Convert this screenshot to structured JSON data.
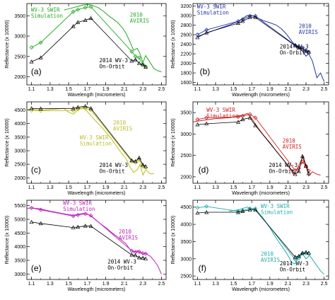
{
  "chart_data": [
    {
      "type": "line",
      "panel": "(a)",
      "xlabel": "Wavelength (micrometers)",
      "ylabel": "Reflectance (x 10000)",
      "xlim": [
        1.05,
        2.55
      ],
      "ylim": [
        1800,
        3800
      ],
      "xticks": [
        1.1,
        1.3,
        1.5,
        1.7,
        1.9,
        2.1,
        2.3,
        2.5
      ],
      "yticks": [
        2000,
        2500,
        3000,
        3500
      ],
      "color": "#22aa22",
      "series": [
        {
          "kind": "aviris",
          "x": [
            1.45,
            1.55,
            1.6,
            1.65,
            1.7,
            1.75,
            1.82,
            1.88,
            1.93,
            1.98,
            2.03,
            2.08,
            2.12,
            2.16,
            2.2,
            2.24,
            2.27,
            2.3,
            2.33,
            2.37,
            2.42,
            2.46,
            2.5
          ],
          "y": [
            3640,
            3700,
            3730,
            3760,
            3780,
            3760,
            3700,
            3600,
            3500,
            3420,
            3330,
            3200,
            3060,
            2860,
            2650,
            2700,
            2560,
            2350,
            2520,
            2380,
            2200,
            2150,
            2120
          ]
        },
        {
          "kind": "simulation",
          "x": [
            1.1,
            1.2,
            1.55,
            1.6,
            1.68,
            1.74,
            2.18,
            2.22,
            2.26,
            2.3,
            2.33
          ],
          "y": [
            2720,
            2840,
            3600,
            3650,
            3700,
            3720,
            2620,
            2500,
            2470,
            2300,
            2250
          ]
        },
        {
          "kind": "onorbit",
          "x": [
            1.1,
            1.2,
            1.55,
            1.6,
            1.68,
            1.74,
            2.18,
            2.22,
            2.26,
            2.3,
            2.33
          ],
          "y": [
            2370,
            2470,
            3240,
            3340,
            3390,
            3440,
            2390,
            2420,
            2330,
            2300,
            2240
          ]
        }
      ],
      "labels": {
        "simulation": [
          "WV-3 SWIR",
          "Simulation"
        ],
        "aviris": [
          "2010",
          "AVIRIS"
        ],
        "onorbit": [
          "2014 WV-3",
          "On-Orbit"
        ]
      }
    },
    {
      "type": "line",
      "panel": "(b)",
      "xlabel": "Wavelength (micrometers)",
      "ylabel": "Reflectance (x 10000)",
      "xlim": [
        1.05,
        2.55
      ],
      "ylim": [
        1550,
        3250
      ],
      "xticks": [
        1.1,
        1.3,
        1.5,
        1.7,
        1.9,
        2.1,
        2.3,
        2.5
      ],
      "yticks": [
        1600,
        1800,
        2000,
        2200,
        2400,
        2600,
        2800,
        3000,
        3200
      ],
      "color": "#2233aa",
      "series": [
        {
          "kind": "aviris",
          "x": [
            1.1,
            1.2,
            1.3,
            1.45,
            1.55,
            1.6,
            1.65,
            1.7,
            1.75,
            1.82,
            1.9,
            1.97,
            2.03,
            2.08,
            2.12,
            2.16,
            2.2,
            2.24,
            2.27,
            2.3,
            2.33,
            2.37,
            2.42,
            2.46,
            2.5
          ],
          "y": [
            2560,
            2630,
            2700,
            2800,
            2880,
            2940,
            3000,
            3000,
            2960,
            2900,
            2850,
            2800,
            2720,
            2620,
            2520,
            2420,
            2340,
            2300,
            2230,
            2150,
            2200,
            2050,
            1700,
            1800,
            1620
          ]
        },
        {
          "kind": "simulation",
          "x": [
            1.1,
            1.2,
            1.55,
            1.6,
            1.68,
            1.74,
            2.18,
            2.22,
            2.26,
            2.3,
            2.33
          ],
          "y": [
            2600,
            2700,
            2880,
            2920,
            2990,
            2990,
            2380,
            2340,
            2330,
            2270,
            2240
          ]
        },
        {
          "kind": "onorbit",
          "x": [
            1.1,
            1.2,
            1.55,
            1.6,
            1.68,
            1.74,
            2.18,
            2.22,
            2.26,
            2.3,
            2.33
          ],
          "y": [
            2540,
            2640,
            2840,
            2880,
            2960,
            2960,
            2370,
            2320,
            2300,
            2250,
            2230
          ]
        }
      ],
      "labels": {
        "simulation": [
          "WV-3 SWIR",
          "Simulation"
        ],
        "aviris": [
          "2010",
          "AVIRIS"
        ],
        "onorbit": [
          "2014 WV-3",
          "On-Orbit"
        ]
      }
    },
    {
      "type": "line",
      "panel": "(c)",
      "xlabel": "Wavelength (micrometers)",
      "ylabel": "Reflectance (x 10000)",
      "xlim": [
        1.05,
        2.55
      ],
      "ylim": [
        1800,
        4800
      ],
      "xticks": [
        1.1,
        1.3,
        1.5,
        1.7,
        1.9,
        2.1,
        2.3,
        2.5
      ],
      "yticks": [
        2000,
        2500,
        3000,
        3500,
        4000,
        4500
      ],
      "color": "#bbbb22",
      "series": [
        {
          "kind": "aviris",
          "x": [
            1.05,
            1.1,
            1.2,
            1.3,
            1.45,
            1.5,
            1.55,
            1.6,
            1.65,
            1.7,
            1.75,
            1.82,
            1.9,
            1.97,
            2.05,
            2.12,
            2.16,
            2.2,
            2.24,
            2.27,
            2.3,
            2.33,
            2.38,
            2.42
          ],
          "y": [
            4520,
            4540,
            4480,
            4520,
            4560,
            4420,
            4350,
            4500,
            4600,
            4450,
            4250,
            4000,
            3700,
            3400,
            3000,
            2700,
            2400,
            2200,
            2300,
            2500,
            2100,
            2300,
            2150,
            2150
          ]
        },
        {
          "kind": "simulation",
          "x": [
            1.1,
            1.2,
            1.55,
            1.6,
            1.68,
            1.74,
            2.18,
            2.22,
            2.26,
            2.3,
            2.33
          ],
          "y": [
            4480,
            4470,
            4480,
            4530,
            4560,
            4500,
            2600,
            2560,
            2660,
            2420,
            2380
          ]
        },
        {
          "kind": "onorbit",
          "x": [
            1.1,
            1.2,
            1.55,
            1.6,
            1.68,
            1.74,
            2.18,
            2.22,
            2.26,
            2.3,
            2.33
          ],
          "y": [
            4560,
            4550,
            4560,
            4600,
            4640,
            4560,
            2640,
            2610,
            2740,
            2480,
            2420
          ]
        }
      ],
      "labels": {
        "simulation": [
          "WV-3 SWIR",
          "Simulation"
        ],
        "aviris": [
          "2010",
          "AVIRIS"
        ],
        "onorbit": [
          "2014 WV-3",
          "On-Orbit"
        ]
      }
    },
    {
      "type": "line",
      "panel": "(d)",
      "xlabel": "Wavelength (micrometers)",
      "ylabel": "Reflectance (x 10000)",
      "xlim": [
        1.05,
        2.55
      ],
      "ylim": [
        1850,
        3750
      ],
      "xticks": [
        1.1,
        1.3,
        1.5,
        1.7,
        1.9,
        2.1,
        2.3,
        2.5
      ],
      "yticks": [
        2000,
        2500,
        3000,
        3500
      ],
      "color": "#cc2222",
      "series": [
        {
          "kind": "aviris",
          "x": [
            1.05,
            1.1,
            1.2,
            1.3,
            1.45,
            1.55,
            1.6,
            1.65,
            1.7,
            1.75,
            1.82,
            1.9,
            1.97,
            2.05,
            2.12,
            2.16,
            2.2,
            2.24,
            2.27,
            2.3,
            2.33,
            2.37,
            2.42,
            2.46
          ],
          "y": [
            3280,
            3300,
            3330,
            3360,
            3380,
            3420,
            3440,
            3480,
            3360,
            3200,
            3000,
            2800,
            2600,
            2400,
            2200,
            2060,
            2160,
            2360,
            2480,
            2260,
            2020,
            2120,
            2060,
            2040
          ]
        },
        {
          "kind": "simulation",
          "x": [
            1.1,
            1.2,
            1.55,
            1.6,
            1.68,
            1.74,
            2.18,
            2.22,
            2.26,
            2.3,
            2.33
          ],
          "y": [
            3340,
            3380,
            3400,
            3420,
            3460,
            3380,
            2150,
            2200,
            2350,
            2250,
            2140
          ]
        },
        {
          "kind": "onorbit",
          "x": [
            1.1,
            1.2,
            1.55,
            1.6,
            1.68,
            1.74,
            2.18,
            2.22,
            2.26,
            2.3,
            2.33
          ],
          "y": [
            3220,
            3240,
            3280,
            3340,
            3380,
            3200,
            2060,
            2130,
            2480,
            2250,
            2080
          ]
        }
      ],
      "labels": {
        "simulation": [
          "WV-3 SWIR",
          "Simulation"
        ],
        "aviris": [
          "2010",
          "AVIRIS"
        ],
        "onorbit": [
          "2014 WV-3",
          "On-Orbit"
        ]
      }
    },
    {
      "type": "line",
      "panel": "(e)",
      "xlabel": "Wavelength (micrometers)",
      "ylabel": "Reflectance (x 10000)",
      "xlim": [
        1.05,
        2.55
      ],
      "ylim": [
        2800,
        5700
      ],
      "xticks": [
        1.1,
        1.3,
        1.5,
        1.7,
        1.9,
        2.1,
        2.3,
        2.5
      ],
      "yticks": [
        3000,
        3500,
        4000,
        4500,
        5000,
        5500
      ],
      "color": "#bb22bb",
      "series": [
        {
          "kind": "aviris",
          "x": [
            1.05,
            1.1,
            1.2,
            1.3,
            1.45,
            1.55,
            1.6,
            1.65,
            1.7,
            1.75,
            1.82,
            1.9,
            1.97,
            2.05,
            2.12,
            2.16,
            2.2,
            2.24,
            2.27,
            2.3,
            2.33,
            2.38,
            2.42,
            2.46,
            2.5
          ],
          "y": [
            5400,
            5420,
            5380,
            5300,
            5200,
            5150,
            5180,
            5220,
            5200,
            5100,
            4900,
            4700,
            4500,
            4300,
            4100,
            3900,
            3800,
            3850,
            3780,
            3720,
            3750,
            3650,
            3500,
            3300,
            3000
          ]
        },
        {
          "kind": "simulation",
          "x": [
            1.1,
            1.2,
            1.55,
            1.6,
            1.68,
            1.74,
            2.18,
            2.22,
            2.26,
            2.3,
            2.33
          ],
          "y": [
            5420,
            5350,
            5120,
            5160,
            5200,
            5140,
            3850,
            3800,
            3820,
            3760,
            3740
          ]
        },
        {
          "kind": "onorbit",
          "x": [
            1.1,
            1.2,
            1.55,
            1.6,
            1.68,
            1.74,
            2.18,
            2.22,
            2.26,
            2.3,
            2.33
          ],
          "y": [
            4900,
            4850,
            4700,
            4720,
            4760,
            4750,
            3700,
            3680,
            3600,
            3590,
            3560
          ]
        }
      ],
      "labels": {
        "simulation": [
          "WV-3 SWIR",
          "Simulation"
        ],
        "aviris": [
          "2010",
          "AVIRIS"
        ],
        "onorbit": [
          "2014 WV-3",
          "On-Orbit"
        ]
      }
    },
    {
      "type": "line",
      "panel": "(f)",
      "xlabel": "Wavelength (micrometers)",
      "ylabel": "Reflectance (x 10000)",
      "xlim": [
        1.05,
        2.55
      ],
      "ylim": [
        2400,
        4700
      ],
      "xticks": [
        1.1,
        1.3,
        1.5,
        1.7,
        1.9,
        2.1,
        2.3,
        2.5
      ],
      "yticks": [
        2500,
        3000,
        3500,
        4000,
        4500
      ],
      "color": "#22aaaa",
      "series": [
        {
          "kind": "aviris",
          "x": [
            1.45,
            1.55,
            1.6,
            1.65,
            1.7,
            1.75,
            1.82,
            1.9,
            1.97,
            2.05,
            2.1,
            2.14,
            2.18,
            2.22,
            2.26,
            2.3,
            2.34,
            2.38,
            2.42,
            2.46,
            2.5
          ],
          "y": [
            4380,
            4420,
            4460,
            4500,
            4450,
            4400,
            4200,
            3900,
            3600,
            3300,
            3100,
            2900,
            2850,
            3050,
            3150,
            3000,
            3100,
            2950,
            2800,
            2650,
            2550
          ]
        },
        {
          "kind": "simulation",
          "x": [
            1.1,
            1.2,
            1.55,
            1.6,
            1.68,
            1.74,
            2.18,
            2.22,
            2.26,
            2.3,
            2.33
          ],
          "y": [
            4480,
            4520,
            4380,
            4400,
            4460,
            4460,
            2980,
            3020,
            3150,
            3160,
            3150
          ]
        },
        {
          "kind": "onorbit",
          "x": [
            1.1,
            1.2,
            1.55,
            1.6,
            1.68,
            1.74,
            2.18,
            2.22,
            2.26,
            2.3,
            2.33
          ],
          "y": [
            4330,
            4350,
            4350,
            4380,
            4420,
            4420,
            3050,
            3080,
            3170,
            3190,
            3170
          ]
        }
      ],
      "labels": {
        "simulation": [
          "WV-3 SWIR",
          "Simulation"
        ],
        "aviris": [
          "2010",
          "AVIRIS"
        ],
        "onorbit": [
          "2014 WV-3",
          "On-Orbit"
        ]
      }
    }
  ]
}
